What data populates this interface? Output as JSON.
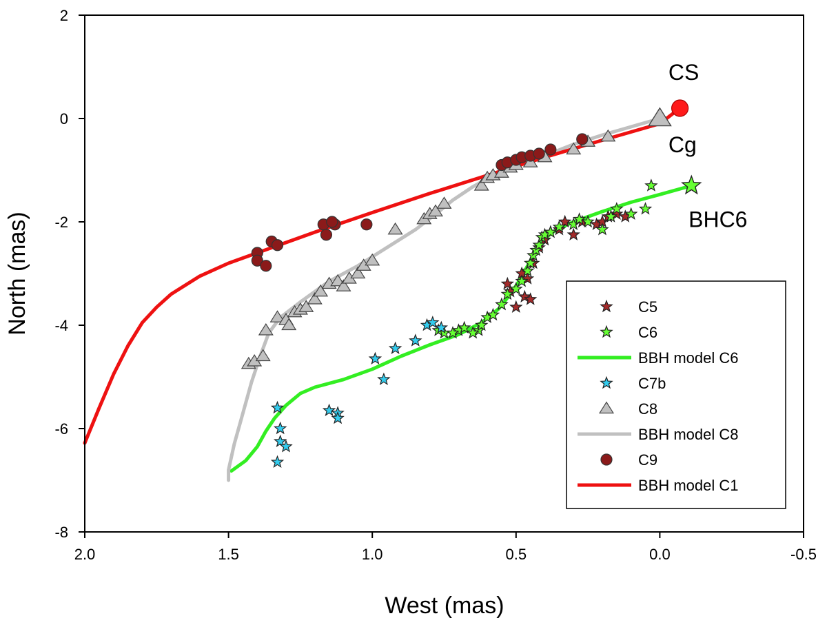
{
  "chart_data": {
    "type": "scatter",
    "xlabel": "West (mas)",
    "ylabel": "North (mas)",
    "xlim": [
      2.0,
      -0.5
    ],
    "ylim": [
      -8,
      2
    ],
    "x_ticks": [
      "2.0",
      "1.5",
      "1.0",
      "0.5",
      "0.0",
      "-0.5"
    ],
    "y_ticks": [
      "2",
      "0",
      "-2",
      "-4",
      "-6",
      "-8"
    ],
    "annotations": [
      {
        "id": "cs",
        "text": "CS",
        "x": -0.03,
        "y": 0.75
      },
      {
        "id": "cg",
        "text": "Cg",
        "x": -0.03,
        "y": -0.65
      },
      {
        "id": "bhc6",
        "text": "BHC6",
        "x": -0.1,
        "y": -2.1
      }
    ],
    "series": [
      {
        "name": "C5",
        "marker": "star",
        "color": "#a52a2a",
        "points": [
          [
            0.53,
            -3.2
          ],
          [
            0.52,
            -3.35
          ],
          [
            0.5,
            -3.65
          ],
          [
            0.48,
            -3.0
          ],
          [
            0.47,
            -3.45
          ],
          [
            0.45,
            -3.5
          ],
          [
            0.44,
            -2.8
          ],
          [
            0.42,
            -2.5
          ],
          [
            0.4,
            -2.35
          ],
          [
            0.38,
            -2.2
          ],
          [
            0.35,
            -2.15
          ],
          [
            0.33,
            -2.0
          ],
          [
            0.3,
            -2.25
          ],
          [
            0.27,
            -2.0
          ],
          [
            0.22,
            -2.05
          ],
          [
            0.2,
            -2.0
          ],
          [
            0.18,
            -1.9
          ],
          [
            0.15,
            -1.85
          ],
          [
            0.12,
            -1.9
          ],
          [
            0.55,
            -3.6
          ],
          [
            0.46,
            -3.1
          ]
        ]
      },
      {
        "name": "C6",
        "marker": "star",
        "color": "#66ff33",
        "points": [
          [
            0.63,
            -4.1
          ],
          [
            0.62,
            -4.0
          ],
          [
            0.6,
            -3.85
          ],
          [
            0.58,
            -3.8
          ],
          [
            0.55,
            -3.6
          ],
          [
            0.53,
            -3.4
          ],
          [
            0.5,
            -3.3
          ],
          [
            0.48,
            -3.15
          ],
          [
            0.46,
            -2.95
          ],
          [
            0.45,
            -2.8
          ],
          [
            0.44,
            -2.65
          ],
          [
            0.43,
            -2.55
          ],
          [
            0.42,
            -2.45
          ],
          [
            0.41,
            -2.3
          ],
          [
            0.4,
            -2.25
          ],
          [
            0.38,
            -2.2
          ],
          [
            0.35,
            -2.1
          ],
          [
            0.3,
            -2.05
          ],
          [
            0.28,
            -1.95
          ],
          [
            0.25,
            -2.0
          ],
          [
            0.2,
            -2.15
          ],
          [
            0.17,
            -1.9
          ],
          [
            0.15,
            -1.75
          ],
          [
            0.1,
            -1.85
          ],
          [
            0.05,
            -1.75
          ],
          [
            0.03,
            -1.3
          ],
          [
            0.65,
            -4.15
          ],
          [
            0.75,
            -4.15
          ],
          [
            0.77,
            -4.1
          ],
          [
            0.7,
            -4.1
          ],
          [
            0.72,
            -4.15
          ],
          [
            0.68,
            -4.05
          ]
        ]
      },
      {
        "name": "C6 endpoint",
        "marker": "bigstar",
        "color": "#66ff33",
        "points": [
          [
            -0.11,
            -1.3
          ]
        ]
      },
      {
        "name": "C7b",
        "marker": "star",
        "color": "#33ccee",
        "points": [
          [
            1.33,
            -5.6
          ],
          [
            1.32,
            -6.0
          ],
          [
            1.32,
            -6.25
          ],
          [
            1.3,
            -6.35
          ],
          [
            1.33,
            -6.65
          ],
          [
            1.15,
            -5.65
          ],
          [
            1.12,
            -5.7
          ],
          [
            1.12,
            -5.8
          ],
          [
            0.99,
            -4.65
          ],
          [
            0.96,
            -5.05
          ],
          [
            0.92,
            -4.45
          ],
          [
            0.85,
            -4.3
          ],
          [
            0.81,
            -4.0
          ],
          [
            0.79,
            -3.95
          ],
          [
            0.76,
            -4.05
          ]
        ]
      },
      {
        "name": "C8",
        "marker": "triangle",
        "color": "#c0c0c0",
        "points": [
          [
            1.43,
            -4.75
          ],
          [
            1.41,
            -4.7
          ],
          [
            1.38,
            -4.6
          ],
          [
            1.37,
            -4.1
          ],
          [
            1.33,
            -3.85
          ],
          [
            1.3,
            -3.9
          ],
          [
            1.29,
            -4.0
          ],
          [
            1.27,
            -3.75
          ],
          [
            1.25,
            -3.7
          ],
          [
            1.23,
            -3.65
          ],
          [
            1.2,
            -3.5
          ],
          [
            1.18,
            -3.35
          ],
          [
            1.15,
            -3.2
          ],
          [
            1.12,
            -3.15
          ],
          [
            1.1,
            -3.25
          ],
          [
            1.08,
            -3.1
          ],
          [
            1.05,
            -3.0
          ],
          [
            1.03,
            -2.85
          ],
          [
            1.0,
            -2.75
          ],
          [
            0.92,
            -2.15
          ],
          [
            0.82,
            -1.95
          ],
          [
            0.8,
            -1.85
          ],
          [
            0.78,
            -1.8
          ],
          [
            0.75,
            -1.65
          ],
          [
            0.62,
            -1.3
          ],
          [
            0.6,
            -1.15
          ],
          [
            0.58,
            -1.1
          ],
          [
            0.55,
            -1.05
          ],
          [
            0.52,
            -0.95
          ],
          [
            0.5,
            -0.9
          ],
          [
            0.45,
            -0.85
          ],
          [
            0.4,
            -0.75
          ],
          [
            0.3,
            -0.6
          ],
          [
            0.25,
            -0.45
          ],
          [
            0.18,
            -0.35
          ]
        ]
      },
      {
        "name": "C8 endpoint",
        "marker": "bigtriangle",
        "color": "#c0c0c0",
        "points": [
          [
            0.0,
            0.0
          ]
        ]
      },
      {
        "name": "C9",
        "marker": "circle",
        "color": "#8b1a1a",
        "points": [
          [
            1.4,
            -2.6
          ],
          [
            1.4,
            -2.75
          ],
          [
            1.37,
            -2.85
          ],
          [
            1.35,
            -2.38
          ],
          [
            1.33,
            -2.45
          ],
          [
            1.17,
            -2.05
          ],
          [
            1.16,
            -2.25
          ],
          [
            1.13,
            -2.05
          ],
          [
            1.14,
            -2.0
          ],
          [
            1.02,
            -2.05
          ],
          [
            0.55,
            -0.9
          ],
          [
            0.53,
            -0.85
          ],
          [
            0.5,
            -0.8
          ],
          [
            0.48,
            -0.75
          ],
          [
            0.45,
            -0.72
          ],
          [
            0.42,
            -0.68
          ],
          [
            0.38,
            -0.6
          ],
          [
            0.27,
            -0.4
          ]
        ]
      },
      {
        "name": "CS",
        "marker": "bigcircle",
        "color": "#ff1a1a",
        "points": [
          [
            -0.07,
            0.2
          ]
        ]
      }
    ],
    "lines": [
      {
        "name": "BBH model C6",
        "color": "#33ee22",
        "points": [
          [
            1.49,
            -6.82
          ],
          [
            1.44,
            -6.62
          ],
          [
            1.4,
            -6.35
          ],
          [
            1.37,
            -6.05
          ],
          [
            1.34,
            -5.8
          ],
          [
            1.3,
            -5.55
          ],
          [
            1.25,
            -5.32
          ],
          [
            1.2,
            -5.2
          ],
          [
            1.1,
            -5.05
          ],
          [
            1.0,
            -4.85
          ],
          [
            0.9,
            -4.6
          ],
          [
            0.8,
            -4.38
          ],
          [
            0.7,
            -4.18
          ],
          [
            0.62,
            -3.95
          ],
          [
            0.56,
            -3.68
          ],
          [
            0.52,
            -3.4
          ],
          [
            0.49,
            -3.15
          ],
          [
            0.46,
            -2.85
          ],
          [
            0.43,
            -2.55
          ],
          [
            0.4,
            -2.32
          ],
          [
            0.36,
            -2.15
          ],
          [
            0.3,
            -2.0
          ],
          [
            0.2,
            -1.8
          ],
          [
            0.1,
            -1.62
          ],
          [
            0.0,
            -1.47
          ],
          [
            -0.11,
            -1.3
          ]
        ]
      },
      {
        "name": "BBH model C8",
        "color": "#c0c0c0",
        "points": [
          [
            1.5,
            -7.0
          ],
          [
            1.5,
            -6.8
          ],
          [
            1.48,
            -6.3
          ],
          [
            1.45,
            -5.7
          ],
          [
            1.42,
            -5.1
          ],
          [
            1.39,
            -4.6
          ],
          [
            1.36,
            -4.15
          ],
          [
            1.32,
            -3.85
          ],
          [
            1.25,
            -3.55
          ],
          [
            1.15,
            -3.15
          ],
          [
            1.05,
            -2.85
          ],
          [
            0.95,
            -2.5
          ],
          [
            0.85,
            -2.15
          ],
          [
            0.78,
            -1.85
          ],
          [
            0.72,
            -1.58
          ],
          [
            0.65,
            -1.32
          ],
          [
            0.58,
            -1.1
          ],
          [
            0.5,
            -0.9
          ],
          [
            0.4,
            -0.72
          ],
          [
            0.3,
            -0.5
          ],
          [
            0.2,
            -0.32
          ],
          [
            0.1,
            -0.16
          ],
          [
            0.0,
            0.0
          ]
        ]
      },
      {
        "name": "BBH model C1",
        "color": "#ee1111",
        "points": [
          [
            2.0,
            -6.28
          ],
          [
            1.95,
            -5.6
          ],
          [
            1.9,
            -4.95
          ],
          [
            1.85,
            -4.4
          ],
          [
            1.8,
            -3.95
          ],
          [
            1.75,
            -3.65
          ],
          [
            1.7,
            -3.4
          ],
          [
            1.6,
            -3.05
          ],
          [
            1.5,
            -2.8
          ],
          [
            1.4,
            -2.6
          ],
          [
            1.3,
            -2.4
          ],
          [
            1.2,
            -2.2
          ],
          [
            1.0,
            -1.82
          ],
          [
            0.8,
            -1.45
          ],
          [
            0.6,
            -1.1
          ],
          [
            0.4,
            -0.75
          ],
          [
            0.2,
            -0.42
          ],
          [
            0.0,
            -0.1
          ],
          [
            -0.07,
            0.2
          ]
        ]
      }
    ],
    "legend": {
      "placement": "lower-right",
      "entries": [
        {
          "label": "C5",
          "kind": "star",
          "color": "#a52a2a"
        },
        {
          "label": "C6",
          "kind": "star",
          "color": "#66ff33"
        },
        {
          "label": "BBH model C6",
          "kind": "line",
          "color": "#33ee22"
        },
        {
          "label": "C7b",
          "kind": "star",
          "color": "#33ccee"
        },
        {
          "label": "C8",
          "kind": "triangle",
          "color": "#c0c0c0"
        },
        {
          "label": "BBH model C8",
          "kind": "line",
          "color": "#c0c0c0"
        },
        {
          "label": "C9",
          "kind": "circle",
          "color": "#8b1a1a"
        },
        {
          "label": "BBH model C1",
          "kind": "line",
          "color": "#ee1111"
        }
      ]
    }
  }
}
